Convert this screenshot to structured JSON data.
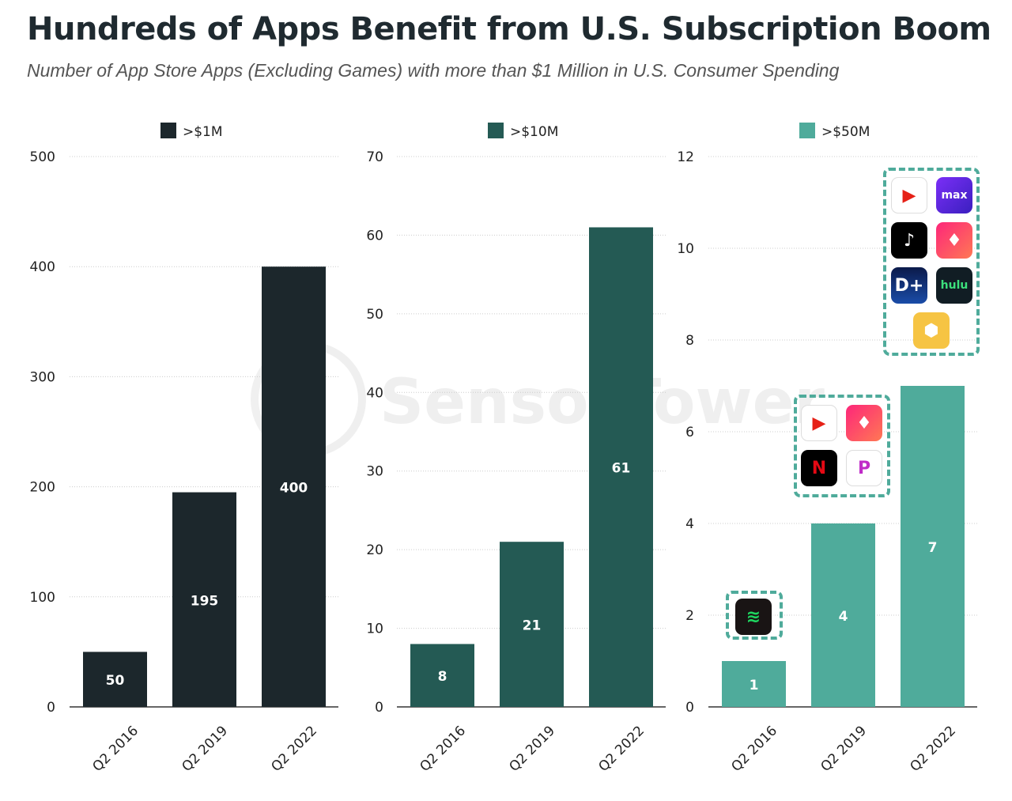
{
  "title": "Hundreds of Apps Benefit from U.S. Subscription Boom",
  "subtitle": "Number of App Store Apps (Excluding Games) with more than $1 Million in U.S. Consumer Spending",
  "watermark": "SensorTower",
  "chart_data": [
    {
      "type": "bar",
      "legend": ">$1M",
      "color": "#1c272c",
      "categories": [
        "Q2 2016",
        "Q2 2019",
        "Q2 2022"
      ],
      "values": [
        50,
        195,
        400
      ],
      "ylim": [
        0,
        500
      ],
      "yticks": [
        0,
        100,
        200,
        300,
        400,
        500
      ],
      "grid": true,
      "legend_position": "top"
    },
    {
      "type": "bar",
      "legend": ">$10M",
      "color": "#245a54",
      "categories": [
        "Q2 2016",
        "Q2 2019",
        "Q2 2022"
      ],
      "values": [
        8,
        21,
        61
      ],
      "ylim": [
        0,
        70
      ],
      "yticks": [
        0,
        10,
        20,
        30,
        40,
        50,
        60,
        70
      ],
      "grid": true,
      "legend_position": "top"
    },
    {
      "type": "bar",
      "legend": ">$50M",
      "color": "#4fab9b",
      "categories": [
        "Q2 2016",
        "Q2 2019",
        "Q2 2022"
      ],
      "values": [
        1,
        4,
        7
      ],
      "ylim": [
        0,
        12
      ],
      "yticks": [
        0,
        2,
        4,
        6,
        8,
        10,
        12
      ],
      "grid": true,
      "legend_position": "top",
      "app_icons": [
        [
          "spotify-icon"
        ],
        [
          "youtube-icon",
          "tinder-icon",
          "netflix-icon",
          "pandora-icon"
        ],
        [
          "youtube-icon",
          "hbo-max-icon",
          "tiktok-icon",
          "tinder-icon",
          "disney-plus-icon",
          "hulu-icon",
          "bumble-icon"
        ]
      ]
    }
  ]
}
